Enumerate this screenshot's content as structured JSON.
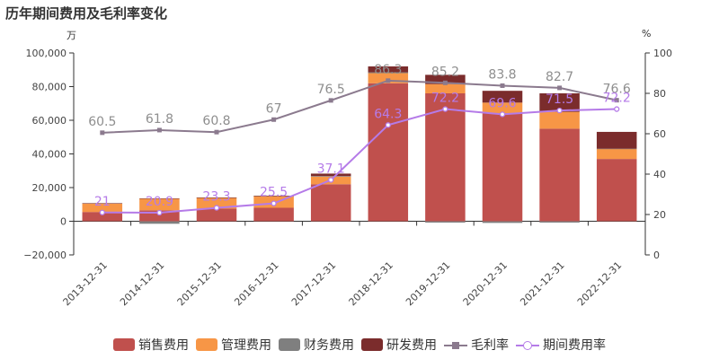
{
  "title": "历年期间费用及毛利率变化",
  "left_unit": "万",
  "right_unit": "%",
  "chart_data": {
    "type": "bar",
    "categories": [
      "2013-12-31",
      "2014-12-31",
      "2015-12-31",
      "2016-12-31",
      "2017-12-31",
      "2018-12-31",
      "2019-12-31",
      "2020-12-31",
      "2021-12-31",
      "2022-12-31"
    ],
    "y_left": {
      "ylim": [
        -20000,
        100000
      ],
      "ticks": [
        100000,
        80000,
        60000,
        40000,
        20000,
        0,
        -20000
      ],
      "tick_labels": [
        "100,000",
        "80,000",
        "60,000",
        "40,000",
        "20,000",
        "0",
        "−20,000"
      ]
    },
    "y_right": {
      "ylim": [
        0,
        100
      ],
      "ticks": [
        100,
        80,
        60,
        40,
        20,
        0
      ],
      "tick_labels": [
        "100",
        "80",
        "60",
        "40",
        "20",
        "0"
      ]
    },
    "series": [
      {
        "name": "销售费用",
        "kind": "bar",
        "color": "#c0504d",
        "values": [
          5500,
          6500,
          7500,
          8000,
          22000,
          82000,
          76000,
          64000,
          55000,
          37000
        ]
      },
      {
        "name": "管理费用",
        "kind": "bar",
        "color": "#f79646",
        "values": [
          5000,
          7000,
          6500,
          7000,
          4500,
          6000,
          5500,
          6500,
          10000,
          6000
        ]
      },
      {
        "name": "财务费用",
        "kind": "bar",
        "color": "#7f7f7f",
        "values": [
          200,
          -1500,
          100,
          100,
          300,
          500,
          -800,
          -1000,
          -800,
          100
        ]
      },
      {
        "name": "研发费用",
        "kind": "bar",
        "color": "#7b2c2c",
        "values": [
          0,
          0,
          0,
          0,
          1500,
          3500,
          5500,
          7000,
          11000,
          10000
        ]
      },
      {
        "name": "毛利率",
        "kind": "line",
        "axis": "right",
        "color": "#8b7a8e",
        "values": [
          60.5,
          61.8,
          60.8,
          67,
          76.5,
          86.3,
          85.2,
          83.8,
          82.7,
          76.6
        ],
        "labels": [
          "60.5",
          "61.8",
          "60.8",
          "67",
          "76.5",
          "86.3",
          "85.2",
          "83.8",
          "82.7",
          "76.6"
        ]
      },
      {
        "name": "期间费用率",
        "kind": "line",
        "axis": "right",
        "color": "#b57be8",
        "values": [
          21,
          20.9,
          23.3,
          25.5,
          37.1,
          64.3,
          72.2,
          69.6,
          71.5,
          72.2
        ],
        "labels": [
          "21",
          "20.9",
          "23.3",
          "25.5",
          "37.1",
          "64.3",
          "72.2",
          "69.6",
          "71.5",
          "72.2"
        ]
      }
    ],
    "legend_position": "bottom",
    "grid": false
  }
}
